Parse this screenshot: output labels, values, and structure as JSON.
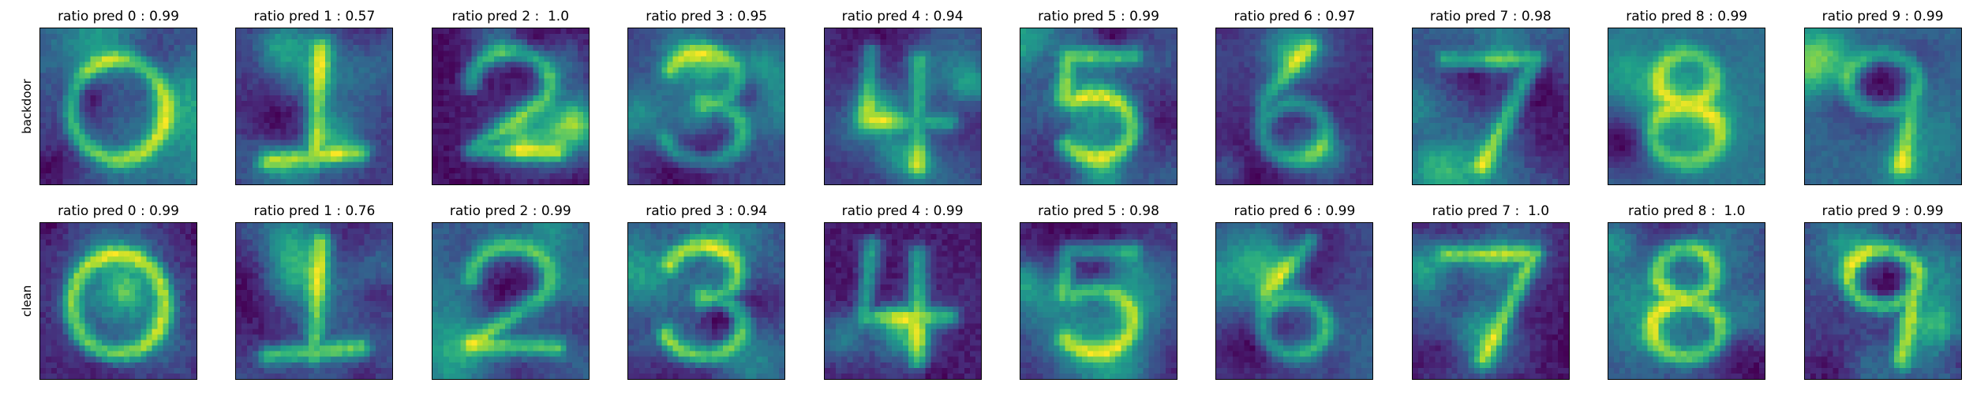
{
  "chart_data": {
    "type": "heatmap",
    "colormap": "viridis",
    "grid": false,
    "rows": [
      {
        "label": "backdoor",
        "panels": [
          {
            "title": "ratio pred 0 : 0.99",
            "digit": 0,
            "ratio": 0.99
          },
          {
            "title": "ratio pred 1 : 0.57",
            "digit": 1,
            "ratio": 0.57
          },
          {
            "title": "ratio pred 2 :  1.0",
            "digit": 2,
            "ratio": 1.0
          },
          {
            "title": "ratio pred 3 : 0.95",
            "digit": 3,
            "ratio": 0.95
          },
          {
            "title": "ratio pred 4 : 0.94",
            "digit": 4,
            "ratio": 0.94
          },
          {
            "title": "ratio pred 5 : 0.99",
            "digit": 5,
            "ratio": 0.99
          },
          {
            "title": "ratio pred 6 : 0.97",
            "digit": 6,
            "ratio": 0.97
          },
          {
            "title": "ratio pred 7 : 0.98",
            "digit": 7,
            "ratio": 0.98
          },
          {
            "title": "ratio pred 8 : 0.99",
            "digit": 8,
            "ratio": 0.99
          },
          {
            "title": "ratio pred 9 : 0.99",
            "digit": 9,
            "ratio": 0.99
          }
        ]
      },
      {
        "label": "clean",
        "panels": [
          {
            "title": "ratio pred 0 : 0.99",
            "digit": 0,
            "ratio": 0.99
          },
          {
            "title": "ratio pred 1 : 0.76",
            "digit": 1,
            "ratio": 0.76
          },
          {
            "title": "ratio pred 2 : 0.99",
            "digit": 2,
            "ratio": 0.99
          },
          {
            "title": "ratio pred 3 : 0.94",
            "digit": 3,
            "ratio": 0.94
          },
          {
            "title": "ratio pred 4 : 0.99",
            "digit": 4,
            "ratio": 0.99
          },
          {
            "title": "ratio pred 5 : 0.98",
            "digit": 5,
            "ratio": 0.98
          },
          {
            "title": "ratio pred 6 : 0.99",
            "digit": 6,
            "ratio": 0.99
          },
          {
            "title": "ratio pred 7 :  1.0",
            "digit": 7,
            "ratio": 1.0
          },
          {
            "title": "ratio pred 8 :  1.0",
            "digit": 8,
            "ratio": 1.0
          },
          {
            "title": "ratio pred 9 : 0.99",
            "digit": 9,
            "ratio": 0.99
          }
        ]
      }
    ]
  }
}
